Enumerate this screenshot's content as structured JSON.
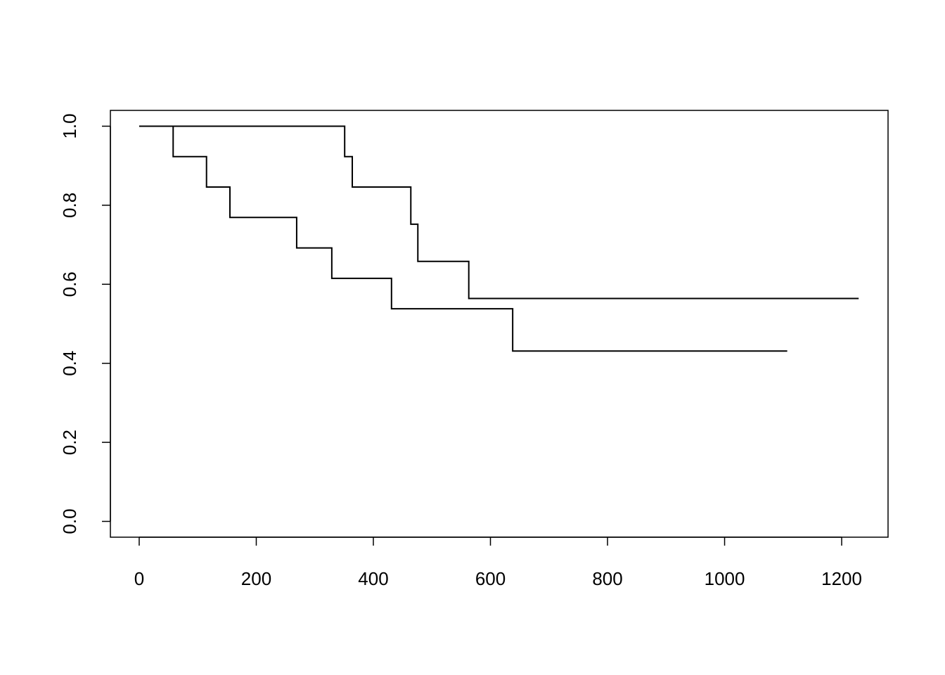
{
  "chart_data": {
    "type": "step",
    "series": [
      {
        "color": "#000000",
        "x": [
          0,
          58,
          115,
          155,
          269,
          329,
          431,
          638,
          1107
        ],
        "values": [
          1,
          0.923,
          0.846,
          0.769,
          0.692,
          0.615,
          0.538,
          0.431,
          0.431
        ]
      },
      {
        "color": "#000000",
        "x": [
          0,
          351,
          364,
          464,
          476,
          563,
          1229
        ],
        "values": [
          1,
          0.923,
          0.846,
          0.752,
          0.658,
          0.564,
          0.564
        ]
      }
    ],
    "xlim": [
      -49.2,
      1279.2
    ],
    "xticks": [
      0,
      200,
      400,
      600,
      800,
      1000,
      1200
    ],
    "ylim": [
      -0.04,
      1.04
    ],
    "yticks": [
      {
        "value": 0,
        "label": "0.0"
      },
      0.2,
      0.4,
      0.6,
      0.8,
      {
        "value": 1,
        "label": "1.0"
      }
    ]
  }
}
